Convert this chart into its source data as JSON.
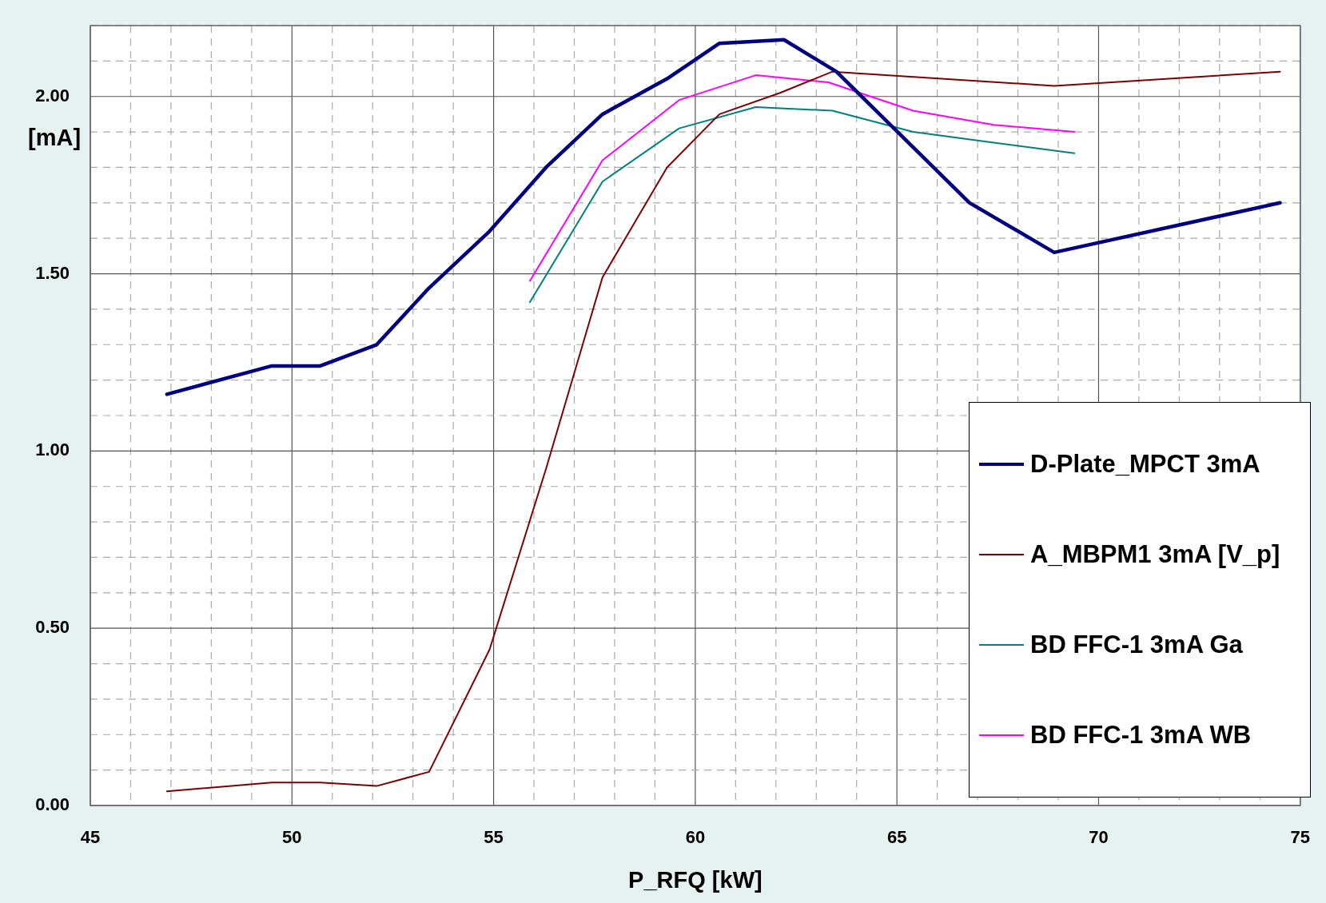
{
  "chart_data": {
    "type": "line",
    "xlabel": "P_RFQ [kW]",
    "ylabel": "[mA]",
    "xlim": [
      45,
      75
    ],
    "xticks": [
      45,
      {
        "value": 46,
        "label": null
      },
      {
        "value": 47,
        "label": null
      },
      {
        "value": 48,
        "label": null
      },
      {
        "value": 49,
        "label": null
      },
      50,
      {
        "value": 51,
        "label": null
      },
      {
        "value": 52,
        "label": null
      },
      {
        "value": 53,
        "label": null
      },
      {
        "value": 54,
        "label": null
      },
      55,
      {
        "value": 56,
        "label": null
      },
      {
        "value": 57,
        "label": null
      },
      {
        "value": 58,
        "label": null
      },
      {
        "value": 59,
        "label": null
      },
      60,
      {
        "value": 61,
        "label": null
      },
      {
        "value": 62,
        "label": null
      },
      {
        "value": 63,
        "label": null
      },
      {
        "value": 64,
        "label": null
      },
      65,
      {
        "value": 66,
        "label": null
      },
      {
        "value": 67,
        "label": null
      },
      {
        "value": 68,
        "label": null
      },
      {
        "value": 69,
        "label": null
      },
      70,
      {
        "value": 71,
        "label": null
      },
      {
        "value": 72,
        "label": null
      },
      {
        "value": 73,
        "label": null
      },
      {
        "value": 74,
        "label": null
      },
      75
    ],
    "ylim": [
      0,
      2.2
    ],
    "yticks": [
      {
        "value": 0,
        "label": "0.00"
      },
      {
        "value": 0.1,
        "label": null
      },
      {
        "value": 0.2,
        "label": null
      },
      {
        "value": 0.3,
        "label": null
      },
      {
        "value": 0.4,
        "label": null
      },
      {
        "value": 0.5,
        "label": "0.50"
      },
      {
        "value": 0.6,
        "label": null
      },
      {
        "value": 0.7,
        "label": null
      },
      {
        "value": 0.8,
        "label": null
      },
      {
        "value": 0.9,
        "label": null
      },
      {
        "value": 1,
        "label": "1.00"
      },
      {
        "value": 1.1,
        "label": null
      },
      {
        "value": 1.2,
        "label": null
      },
      {
        "value": 1.3,
        "label": null
      },
      {
        "value": 1.4,
        "label": null
      },
      {
        "value": 1.5,
        "label": "1.50"
      },
      {
        "value": 1.6,
        "label": null
      },
      {
        "value": 1.7,
        "label": null
      },
      {
        "value": 1.8,
        "label": null
      },
      {
        "value": 1.9,
        "label": null
      },
      {
        "value": 2,
        "label": "2.00"
      },
      {
        "value": 2.1,
        "label": null
      },
      {
        "value": 2.2,
        "label": null
      }
    ],
    "grid": true,
    "legend": "bottom right",
    "marker": "none",
    "line_style": "solid",
    "series": [
      {
        "name": "D-Plate_MPCT 3mA",
        "color": "#000080",
        "x": [
          46.9,
          49.5,
          50.7,
          52.1,
          53.4,
          54.9,
          56.3,
          57.7,
          59.3,
          60.6,
          62.2,
          63.5,
          66.8,
          68.9,
          74.5
        ],
        "values": [
          1.16,
          1.24,
          1.24,
          1.3,
          1.46,
          1.62,
          1.8,
          1.95,
          2.05,
          2.15,
          2.16,
          2.07,
          1.7,
          1.56,
          1.7
        ]
      },
      {
        "name": "A_MBPM1 3mA [V_p]",
        "color": "#800000",
        "x": [
          46.9,
          49.5,
          50.7,
          52.1,
          53.4,
          54.9,
          56.3,
          57.7,
          59.3,
          60.6,
          62.1,
          63.4,
          68.9,
          74.5
        ],
        "values": [
          0.04,
          0.065,
          0.065,
          0.055,
          0.095,
          0.44,
          0.95,
          1.49,
          1.8,
          1.95,
          2.01,
          2.07,
          2.03,
          2.07
        ]
      },
      {
        "name": "BD FFC-1 3mA Ga",
        "color": "#008080",
        "x": [
          55.9,
          57.7,
          59.6,
          61.5,
          63.4,
          65.4,
          67.4,
          69.4
        ],
        "values": [
          1.42,
          1.76,
          1.91,
          1.97,
          1.96,
          1.9,
          1.87,
          1.84
        ]
      },
      {
        "name": "BD FFC-1 3mA WB",
        "color": "#ff00ff",
        "x": [
          55.9,
          57.7,
          59.6,
          61.5,
          63.3,
          65.4,
          67.4,
          69.4
        ],
        "values": [
          1.48,
          1.82,
          1.99,
          2.06,
          2.04,
          1.96,
          1.92,
          1.9
        ]
      }
    ]
  }
}
